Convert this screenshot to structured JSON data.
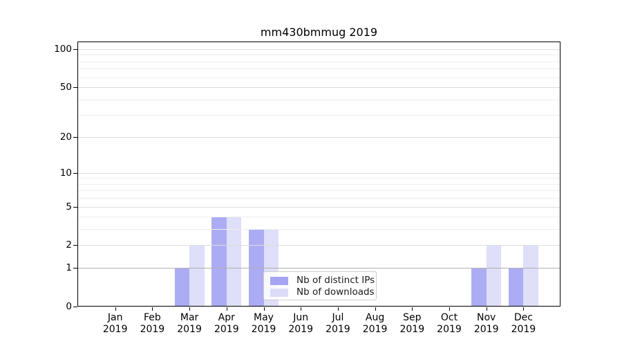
{
  "chart_data": {
    "type": "bar",
    "title": "mm430bmmug 2019",
    "categories": [
      "Jan 2019",
      "Feb 2019",
      "Mar 2019",
      "Apr 2019",
      "May 2019",
      "Jun 2019",
      "Jul 2019",
      "Aug 2019",
      "Sep 2019",
      "Oct 2019",
      "Nov 2019",
      "Dec 2019"
    ],
    "series": [
      {
        "name": "Nb of distinct IPs",
        "color": "#a5a5f3",
        "values": [
          0,
          0,
          1,
          4,
          3,
          0,
          0,
          0,
          0,
          0,
          1,
          1
        ]
      },
      {
        "name": "Nb of downloads",
        "color": "#dcdcf9",
        "values": [
          0,
          0,
          2,
          4,
          3,
          0,
          0,
          0,
          0,
          0,
          2,
          2
        ]
      }
    ],
    "xlabel": "",
    "ylabel": "",
    "y_axis": {
      "scale": "log1p",
      "major_ticks": [
        0,
        1,
        2,
        5,
        10,
        20,
        50,
        100
      ],
      "minor_gridlines": [
        3,
        4,
        6,
        7,
        8,
        9,
        30,
        40,
        60,
        70,
        80,
        90
      ],
      "ylim": [
        0,
        114.7
      ]
    },
    "grid": true,
    "legend_position": "lower center"
  }
}
